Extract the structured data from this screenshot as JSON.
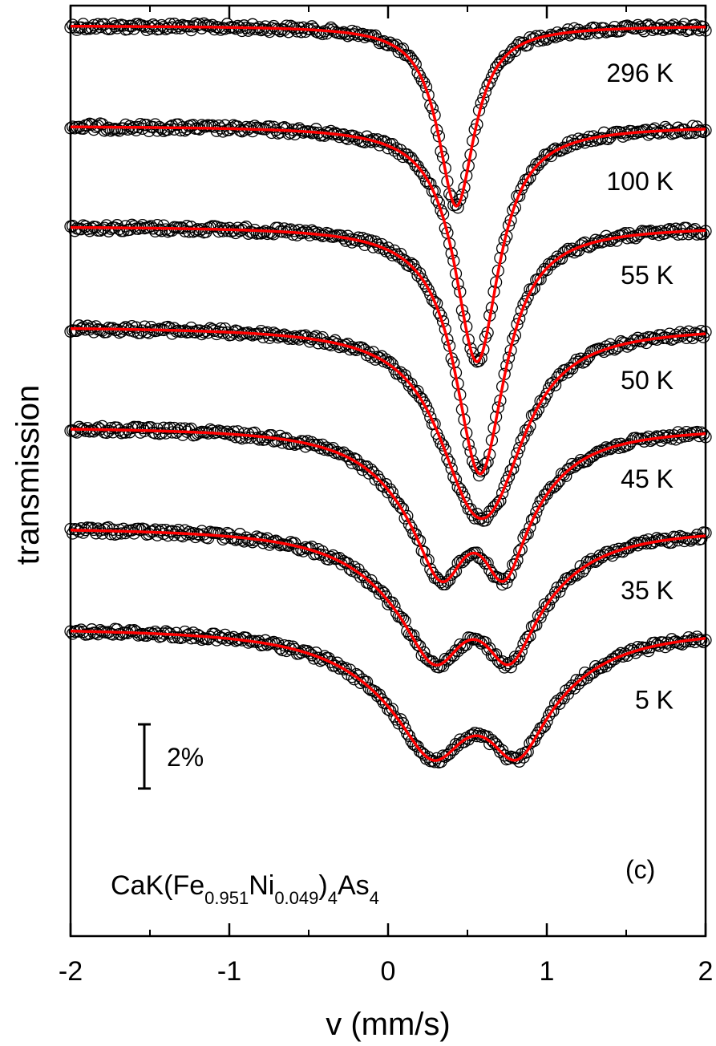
{
  "chart_data": {
    "type": "scatter",
    "xlabel": "v (mm/s)",
    "ylabel": "transmission",
    "xlim": [
      -2,
      2
    ],
    "xticks": [
      "-2",
      "-1",
      "0",
      "1",
      "2"
    ],
    "y_scale_bar": "2%",
    "panel_label": "(c)",
    "formula": {
      "main": "CaK(Fe",
      "sub1": "0.951",
      "mid": "Ni",
      "sub2": "0.049",
      "close": ")",
      "sub3": "4",
      "tail": "As",
      "sub4": "4"
    },
    "series": [
      {
        "name": "296 K",
        "line_color": "#ff0000",
        "offset_pct": 0,
        "shape": "singlet",
        "center": 0.43,
        "depth_pct": 7.5,
        "width": 0.14
      },
      {
        "name": "100 K",
        "line_color": "#ff0000",
        "offset_pct": 3.5,
        "shape": "singlet",
        "center": 0.56,
        "depth_pct": 9.8,
        "width": 0.17
      },
      {
        "name": "55 K",
        "line_color": "#ff0000",
        "offset_pct": 7,
        "shape": "singlet",
        "center": 0.58,
        "depth_pct": 10.3,
        "width": 0.19
      },
      {
        "name": "50 K",
        "line_color": "#ff0000",
        "offset_pct": 10.5,
        "shape": "broad",
        "center": 0.57,
        "depth_pct": 7.9,
        "width": 0.27
      },
      {
        "name": "45 K",
        "line_color": "#ff0000",
        "offset_pct": 14,
        "shape": "split",
        "center": 0.55,
        "depth_pct": 6.4,
        "width": 0.42
      },
      {
        "name": "35 K",
        "line_color": "#ff0000",
        "offset_pct": 17.5,
        "shape": "split",
        "center": 0.55,
        "depth_pct": 5.7,
        "width": 0.5
      },
      {
        "name": "5 K",
        "line_color": "#ff0000",
        "offset_pct": 21,
        "shape": "split",
        "center": 0.57,
        "depth_pct": 5.5,
        "width": 0.56
      }
    ]
  }
}
